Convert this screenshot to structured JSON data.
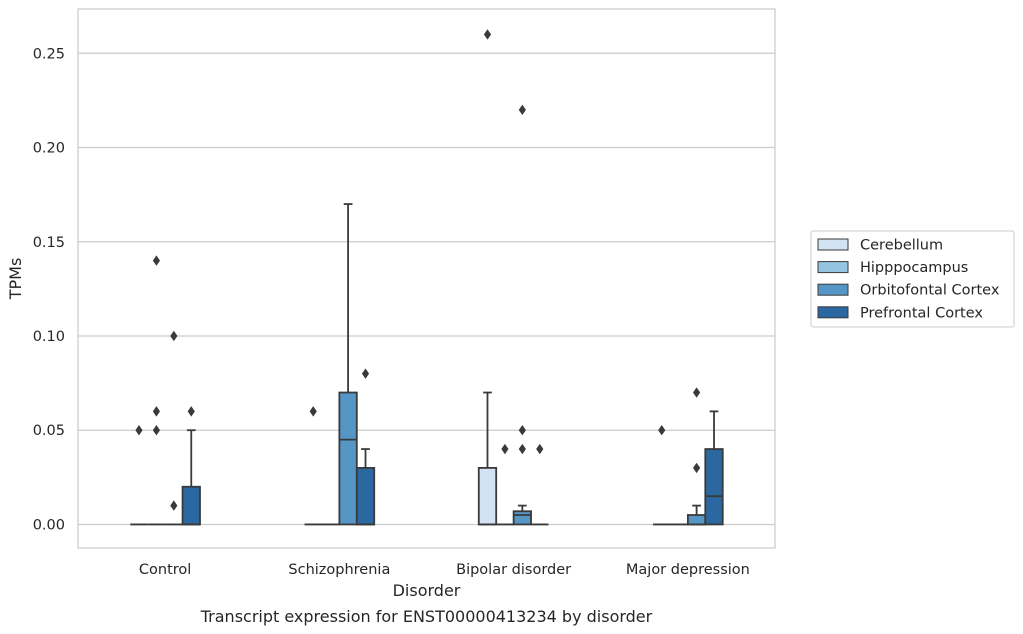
{
  "chart_data": {
    "type": "box",
    "title": "Transcript expression for ENST00000413234 by disorder",
    "xlabel": "Disorder",
    "ylabel": "TPMs",
    "ylim": [
      -0.0125,
      0.2735
    ],
    "yticks": [
      "0.00",
      "0.05",
      "0.10",
      "0.15",
      "0.20",
      "0.25"
    ],
    "ytick_values": [
      0,
      0.05,
      0.1,
      0.15,
      0.2,
      0.25
    ],
    "grid": "horizontal",
    "legend_position": "right",
    "categories": [
      "Control",
      "Schizophrenia",
      "Bipolar disorder",
      "Major depression"
    ],
    "series": [
      {
        "name": "Cerebellum",
        "color": "#d3e3f3",
        "boxes": [
          {
            "category": "Control",
            "q1": 0,
            "median": 0,
            "q3": 0,
            "whislo": 0,
            "whishi": 0,
            "fliers": [
              0.05
            ]
          },
          {
            "category": "Schizophrenia",
            "q1": 0,
            "median": 0,
            "q3": 0,
            "whislo": 0,
            "whishi": 0,
            "fliers": [
              0.06
            ]
          },
          {
            "category": "Bipolar disorder",
            "q1": 0,
            "median": 0,
            "q3": 0.03,
            "whislo": 0,
            "whishi": 0.07,
            "fliers": [
              0.26
            ]
          },
          {
            "category": "Major depression",
            "q1": 0,
            "median": 0,
            "q3": 0,
            "whislo": 0,
            "whishi": 0,
            "fliers": [
              0.05
            ]
          }
        ]
      },
      {
        "name": "Hipppocampus",
        "color": "#94c4df",
        "boxes": [
          {
            "category": "Control",
            "q1": 0,
            "median": 0,
            "q3": 0,
            "whislo": 0,
            "whishi": 0,
            "fliers": [
              0.14,
              0.06,
              0.05
            ]
          },
          {
            "category": "Schizophrenia",
            "q1": 0,
            "median": 0,
            "q3": 0,
            "whislo": 0,
            "whishi": 0,
            "fliers": []
          },
          {
            "category": "Bipolar disorder",
            "q1": 0,
            "median": 0,
            "q3": 0,
            "whislo": 0,
            "whishi": 0,
            "fliers": [
              0.04
            ]
          },
          {
            "category": "Major depression",
            "q1": 0,
            "median": 0,
            "q3": 0,
            "whislo": 0,
            "whishi": 0,
            "fliers": []
          }
        ]
      },
      {
        "name": "Orbitofontal Cortex",
        "color": "#5696c7",
        "boxes": [
          {
            "category": "Control",
            "q1": 0,
            "median": 0,
            "q3": 0,
            "whislo": 0,
            "whishi": 0,
            "fliers": [
              0.1,
              0.01
            ]
          },
          {
            "category": "Schizophrenia",
            "q1": 0,
            "median": 0.045,
            "q3": 0.07,
            "whislo": 0,
            "whishi": 0.17,
            "fliers": []
          },
          {
            "category": "Bipolar disorder",
            "q1": 0,
            "median": 0.005,
            "q3": 0.007,
            "whislo": 0,
            "whishi": 0.01,
            "fliers": [
              0.22,
              0.05,
              0.04
            ]
          },
          {
            "category": "Major depression",
            "q1": 0,
            "median": 0,
            "q3": 0.005,
            "whislo": 0,
            "whishi": 0.01,
            "fliers": [
              0.07,
              0.03
            ]
          }
        ]
      },
      {
        "name": "Prefrontal Cortex",
        "color": "#2b67a1",
        "boxes": [
          {
            "category": "Control",
            "q1": 0,
            "median": 0,
            "q3": 0.02,
            "whislo": 0,
            "whishi": 0.05,
            "fliers": [
              0.06
            ]
          },
          {
            "category": "Schizophrenia",
            "q1": 0,
            "median": 0,
            "q3": 0.03,
            "whislo": 0,
            "whishi": 0.04,
            "fliers": [
              0.08
            ]
          },
          {
            "category": "Bipolar disorder",
            "q1": 0,
            "median": 0,
            "q3": 0,
            "whislo": 0,
            "whishi": 0,
            "fliers": [
              0.04
            ]
          },
          {
            "category": "Major depression",
            "q1": 0,
            "median": 0.015,
            "q3": 0.04,
            "whislo": 0,
            "whishi": 0.06,
            "fliers": []
          }
        ]
      }
    ]
  }
}
